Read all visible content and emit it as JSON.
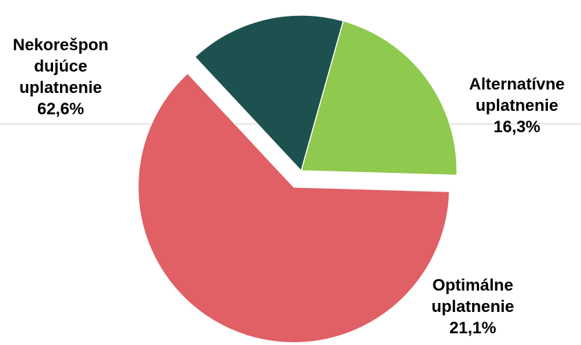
{
  "chart_data": {
    "type": "pie",
    "title": "",
    "legend": "none",
    "slices": [
      {
        "category": "Alternatívne uplatnenie",
        "value": 16.3,
        "value_label": "16,3%",
        "label_lines": [
          "Alternatívne",
          "uplatnenie",
          "16,3%"
        ],
        "color": "#1d5150",
        "exploded": false
      },
      {
        "category": "Optimálne uplatnenie",
        "value": 21.1,
        "value_label": "21,1%",
        "label_lines": [
          "Optimálne",
          "uplatnenie",
          "21,1%"
        ],
        "color": "#8fc94d",
        "exploded": false
      },
      {
        "category": "Nekorešpondujúce uplatnenie",
        "value": 62.6,
        "value_label": "62,6%",
        "label_lines": [
          "Nekorešpon",
          "dujúce",
          "uplatnenie",
          "62,6%"
        ],
        "color": "#e06065",
        "exploded": true
      }
    ]
  }
}
